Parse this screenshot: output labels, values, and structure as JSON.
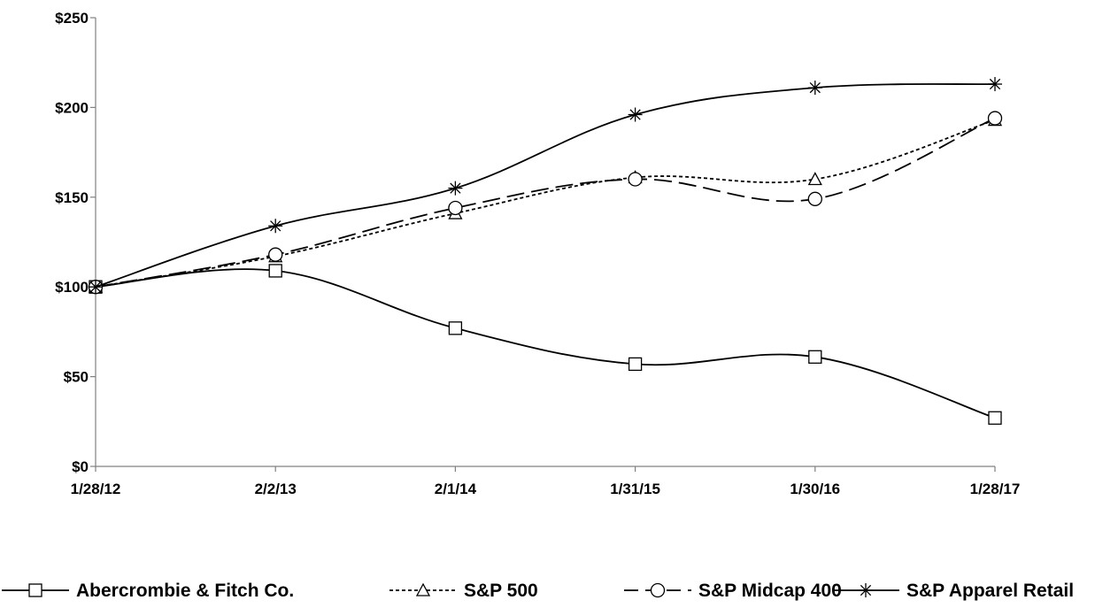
{
  "chart_data": {
    "type": "line",
    "title": "",
    "xlabel": "",
    "ylabel": "",
    "categories": [
      "1/28/12",
      "2/2/13",
      "2/1/14",
      "1/31/15",
      "1/30/16",
      "1/28/17"
    ],
    "ylim": [
      0,
      250
    ],
    "y_ticks": [
      0,
      50,
      100,
      150,
      200,
      250
    ],
    "y_tick_labels": [
      "$0",
      "$50",
      "$100",
      "$150",
      "$200",
      "$250"
    ],
    "grid": false,
    "legend_position": "bottom",
    "series": [
      {
        "name": "Abercrombie & Fitch Co.",
        "values": [
          100,
          109,
          77,
          57,
          61,
          27
        ],
        "marker": "square",
        "dash": "solid",
        "color": "#000000"
      },
      {
        "name": "S&P 500",
        "values": [
          100,
          117,
          141,
          161,
          160,
          193
        ],
        "marker": "triangle",
        "dash": "dotted",
        "color": "#000000"
      },
      {
        "name": "S&P Midcap 400",
        "values": [
          100,
          118,
          144,
          160,
          149,
          194
        ],
        "marker": "circle",
        "dash": "dashed",
        "color": "#000000"
      },
      {
        "name": "S&P Apparel Retail",
        "values": [
          100,
          134,
          155,
          196,
          211,
          213
        ],
        "marker": "asterisk",
        "dash": "solid",
        "color": "#000000"
      }
    ]
  }
}
